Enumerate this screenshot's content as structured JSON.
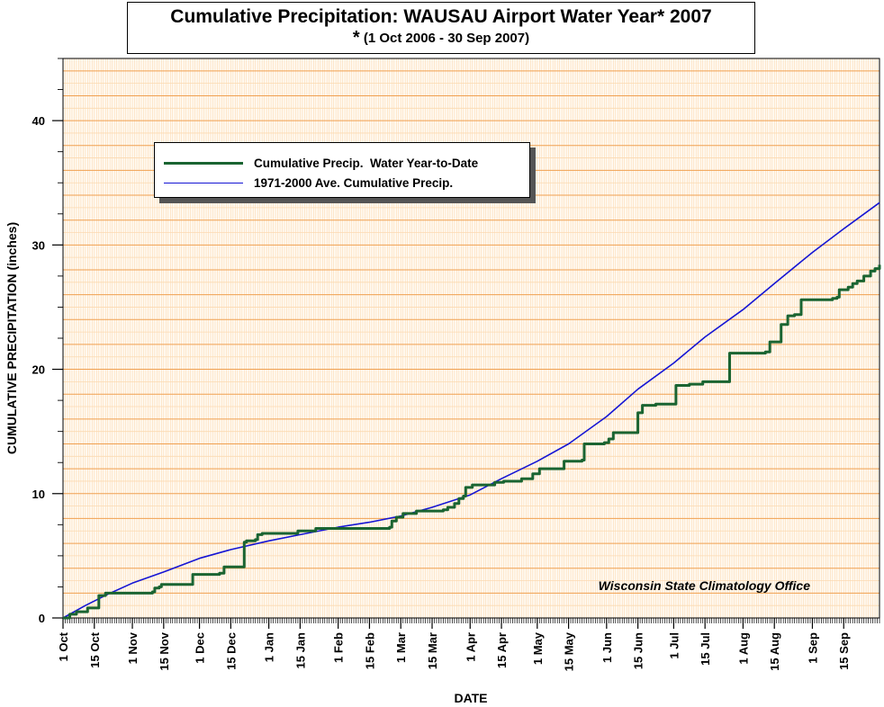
{
  "title": "Cumulative Precipitation: WAUSAU Airport Water Year* 2007",
  "subtitle_star": "*",
  "subtitle": "(1 Oct 2006 - 30 Sep 2007)",
  "credit": "Wisconsin State Climatology Office",
  "colors": {
    "actual": "#1a6431",
    "average": "#1515d4",
    "grid_major": "#f0a050",
    "grid_minor": "#fcd9b0",
    "background": "#fffaf2"
  },
  "chart_data": {
    "type": "line",
    "xlabel": "DATE",
    "ylabel": "CUMULATIVE PRECIPITATION (inches)",
    "x_unit": "days since 1 Oct 2006",
    "xlim": [
      0,
      365
    ],
    "ylim": [
      0,
      45
    ],
    "y_ticks": [
      0,
      10,
      20,
      30,
      40
    ],
    "x_ticks": [
      {
        "label": "1 Oct",
        "day": 0
      },
      {
        "label": "15 Oct",
        "day": 14
      },
      {
        "label": "1 Nov",
        "day": 31
      },
      {
        "label": "15 Nov",
        "day": 45
      },
      {
        "label": "1 Dec",
        "day": 61
      },
      {
        "label": "15 Dec",
        "day": 75
      },
      {
        "label": "1 Jan",
        "day": 92
      },
      {
        "label": "15 Jan",
        "day": 106
      },
      {
        "label": "1 Feb",
        "day": 123
      },
      {
        "label": "15 Feb",
        "day": 137
      },
      {
        "label": "1 Mar",
        "day": 151
      },
      {
        "label": "15 Mar",
        "day": 165
      },
      {
        "label": "1 Apr",
        "day": 182
      },
      {
        "label": "15 Apr",
        "day": 196
      },
      {
        "label": "1 May",
        "day": 212
      },
      {
        "label": "15 May",
        "day": 226
      },
      {
        "label": "1 Jun",
        "day": 243
      },
      {
        "label": "15 Jun",
        "day": 257
      },
      {
        "label": "1 Jul",
        "day": 273
      },
      {
        "label": "15 Jul",
        "day": 287
      },
      {
        "label": "1 Aug",
        "day": 304
      },
      {
        "label": "15 Aug",
        "day": 318
      },
      {
        "label": "1 Sep",
        "day": 335
      },
      {
        "label": "15 Sep",
        "day": 349
      }
    ],
    "legend_position": "top-left",
    "series": [
      {
        "name": "Cumulative Precip.  Water Year-to-Date",
        "step": true,
        "points": [
          [
            0,
            0
          ],
          [
            3,
            0.3
          ],
          [
            6,
            0.5
          ],
          [
            10,
            0.5
          ],
          [
            11,
            0.8
          ],
          [
            15,
            0.8
          ],
          [
            16,
            1.8
          ],
          [
            19,
            2.0
          ],
          [
            38,
            2.0
          ],
          [
            40,
            2.1
          ],
          [
            41,
            2.4
          ],
          [
            43,
            2.5
          ],
          [
            44,
            2.7
          ],
          [
            56,
            2.7
          ],
          [
            58,
            3.5
          ],
          [
            70,
            3.6
          ],
          [
            72,
            4.1
          ],
          [
            79,
            4.1
          ],
          [
            81,
            6.1
          ],
          [
            82,
            6.2
          ],
          [
            85,
            6.2
          ],
          [
            86,
            6.3
          ],
          [
            87,
            6.7
          ],
          [
            89,
            6.8
          ],
          [
            104,
            6.8
          ],
          [
            105,
            7.0
          ],
          [
            111,
            7.0
          ],
          [
            113,
            7.2
          ],
          [
            146,
            7.3
          ],
          [
            147,
            7.8
          ],
          [
            149,
            8.1
          ],
          [
            152,
            8.4
          ],
          [
            158,
            8.6
          ],
          [
            170,
            8.7
          ],
          [
            172,
            8.9
          ],
          [
            175,
            9.2
          ],
          [
            177,
            9.6
          ],
          [
            179,
            9.8
          ],
          [
            180,
            10.5
          ],
          [
            183,
            10.7
          ],
          [
            193,
            10.9
          ],
          [
            197,
            11.0
          ],
          [
            205,
            11.2
          ],
          [
            209,
            11.2
          ],
          [
            210,
            11.6
          ],
          [
            213,
            12.0
          ],
          [
            222,
            12.0
          ],
          [
            224,
            12.6
          ],
          [
            232,
            12.7
          ],
          [
            233,
            14.0
          ],
          [
            242,
            14.1
          ],
          [
            244,
            14.4
          ],
          [
            246,
            14.9
          ],
          [
            256,
            14.9
          ],
          [
            257,
            16.5
          ],
          [
            259,
            17.1
          ],
          [
            264,
            17.1
          ],
          [
            265,
            17.2
          ],
          [
            271,
            17.2
          ],
          [
            274,
            18.7
          ],
          [
            280,
            18.8
          ],
          [
            286,
            19.0
          ],
          [
            297,
            19.0
          ],
          [
            298,
            21.3
          ],
          [
            310,
            21.3
          ],
          [
            314,
            21.4
          ],
          [
            316,
            22.2
          ],
          [
            320,
            22.2
          ],
          [
            321,
            23.6
          ],
          [
            324,
            24.3
          ],
          [
            327,
            24.4
          ],
          [
            330,
            25.6
          ],
          [
            344,
            25.7
          ],
          [
            346,
            25.8
          ],
          [
            347,
            26.4
          ],
          [
            351,
            26.6
          ],
          [
            353,
            26.9
          ],
          [
            355,
            27.1
          ],
          [
            358,
            27.5
          ],
          [
            361,
            27.9
          ],
          [
            363,
            28.1
          ],
          [
            365,
            28.4
          ]
        ]
      },
      {
        "name": "1971-2000 Ave. Cumulative Precip.",
        "step": false,
        "points": [
          [
            0,
            0
          ],
          [
            10,
            1.0
          ],
          [
            20,
            1.9
          ],
          [
            31,
            2.8
          ],
          [
            45,
            3.7
          ],
          [
            61,
            4.8
          ],
          [
            75,
            5.5
          ],
          [
            92,
            6.2
          ],
          [
            106,
            6.7
          ],
          [
            123,
            7.3
          ],
          [
            137,
            7.7
          ],
          [
            151,
            8.2
          ],
          [
            165,
            8.9
          ],
          [
            182,
            9.9
          ],
          [
            196,
            11.2
          ],
          [
            212,
            12.6
          ],
          [
            226,
            14.0
          ],
          [
            243,
            16.2
          ],
          [
            257,
            18.4
          ],
          [
            273,
            20.5
          ],
          [
            287,
            22.6
          ],
          [
            304,
            24.8
          ],
          [
            318,
            26.9
          ],
          [
            335,
            29.4
          ],
          [
            349,
            31.3
          ],
          [
            365,
            33.4
          ]
        ]
      }
    ]
  }
}
